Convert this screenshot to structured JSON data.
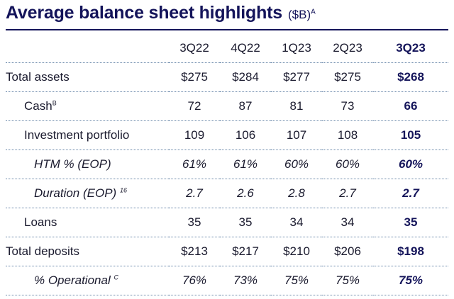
{
  "header": {
    "title": "Average balance sheet highlights",
    "unit": "($B)",
    "unit_note": "A"
  },
  "columns": [
    "3Q22",
    "4Q22",
    "1Q23",
    "2Q23",
    "3Q23"
  ],
  "rows": [
    {
      "label": "Total assets",
      "note": "",
      "values": [
        "$275",
        "$284",
        "$277",
        "$275",
        "$268"
      ]
    },
    {
      "label": "Cash",
      "note": "B",
      "values": [
        "72",
        "87",
        "81",
        "73",
        "66"
      ]
    },
    {
      "label": "Investment portfolio",
      "note": "",
      "values": [
        "109",
        "106",
        "107",
        "108",
        "105"
      ]
    },
    {
      "label": "HTM % (EOP)",
      "note": "",
      "values": [
        "61%",
        "61%",
        "60%",
        "60%",
        "60%"
      ]
    },
    {
      "label": "Duration (EOP)",
      "note": "16",
      "values": [
        "2.7",
        "2.6",
        "2.8",
        "2.7",
        "2.7"
      ]
    },
    {
      "label": "Loans",
      "note": "",
      "values": [
        "35",
        "35",
        "34",
        "34",
        "35"
      ]
    },
    {
      "label": "Total deposits",
      "note": "",
      "values": [
        "$213",
        "$217",
        "$210",
        "$206",
        "$198"
      ]
    },
    {
      "label": "% Operational",
      "note": "C",
      "values": [
        "76%",
        "73%",
        "75%",
        "75%",
        "75%"
      ]
    }
  ]
}
